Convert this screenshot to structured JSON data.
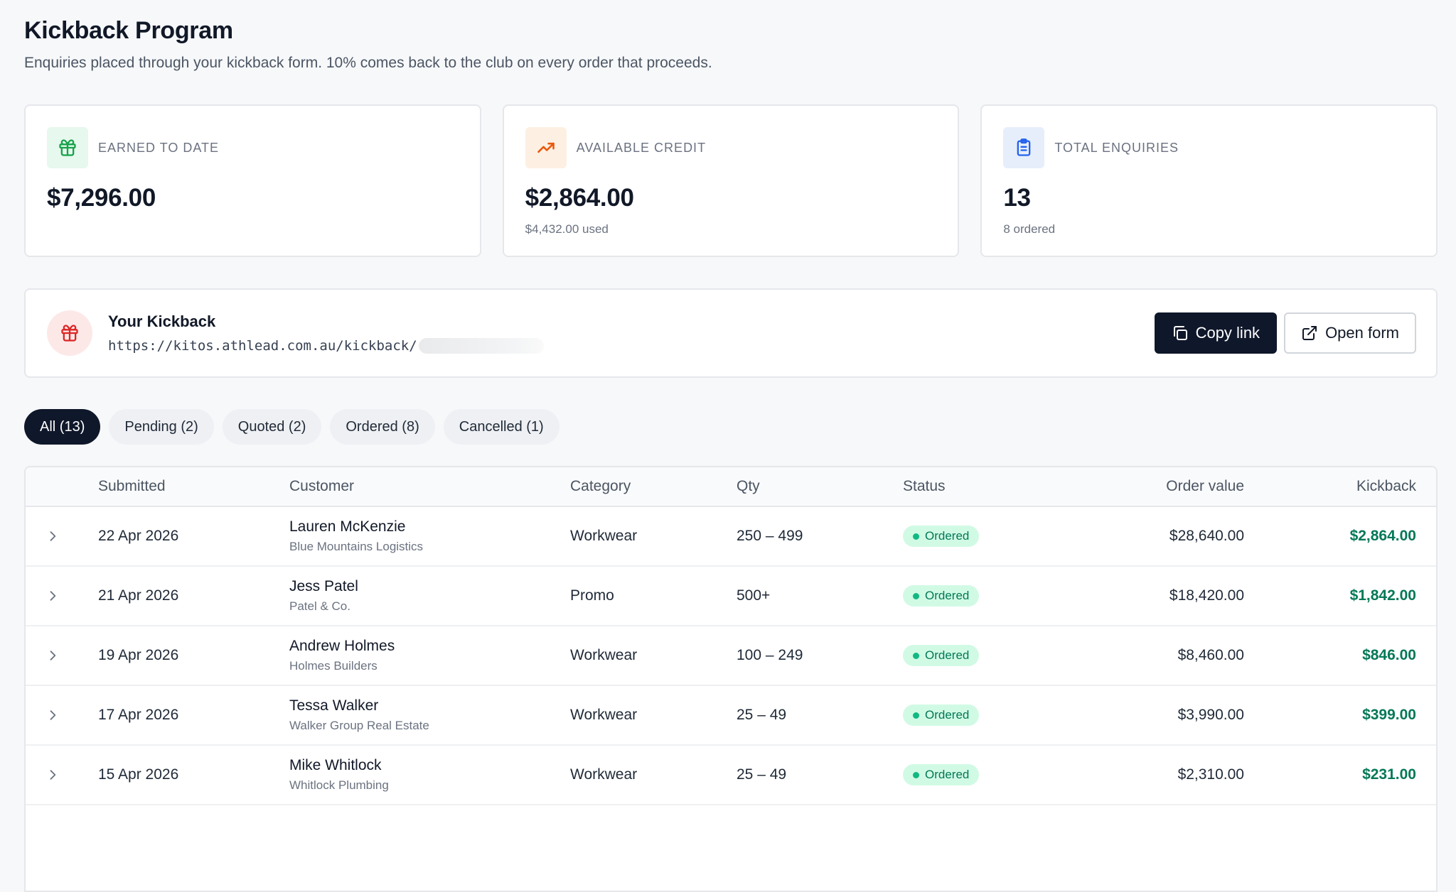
{
  "header": {
    "title": "Kickback Program",
    "subtitle": "Enquiries placed through your kickback form. 10% comes back to the club on every order that proceeds."
  },
  "stats": [
    {
      "label": "EARNED TO DATE",
      "value": "$7,296.00",
      "sub": "",
      "icon": "gift-icon",
      "accent": "#16a34a",
      "bg": "#e7f8ee"
    },
    {
      "label": "AVAILABLE CREDIT",
      "value": "$2,864.00",
      "sub": "$4,432.00 used",
      "icon": "trending-up-icon",
      "accent": "#ea580c",
      "bg": "#fdf0e2"
    },
    {
      "label": "TOTAL ENQUIRIES",
      "value": "13",
      "sub": "8 ordered",
      "icon": "clipboard-icon",
      "accent": "#2563eb",
      "bg": "#e6eefc"
    }
  ],
  "kickback": {
    "title": "Your Kickback",
    "url": "https://kitos.athlead.com.au/kickback/",
    "copy_label": "Copy link",
    "open_label": "Open form"
  },
  "filters": [
    {
      "label": "All (13)",
      "active": true
    },
    {
      "label": "Pending (2)",
      "active": false
    },
    {
      "label": "Quoted (2)",
      "active": false
    },
    {
      "label": "Ordered (8)",
      "active": false
    },
    {
      "label": "Cancelled (1)",
      "active": false
    }
  ],
  "table": {
    "columns": {
      "submitted": "Submitted",
      "customer": "Customer",
      "category": "Category",
      "qty": "Qty",
      "status": "Status",
      "order_value": "Order value",
      "kickback": "Kickback"
    },
    "rows": [
      {
        "submitted": "22 Apr 2026",
        "name": "Lauren McKenzie",
        "company": "Blue Mountains Logistics",
        "category": "Workwear",
        "qty": "250 – 499",
        "status": "Ordered",
        "order_value": "$28,640.00",
        "kickback": "$2,864.00"
      },
      {
        "submitted": "21 Apr 2026",
        "name": "Jess Patel",
        "company": "Patel & Co.",
        "category": "Promo",
        "qty": "500+",
        "status": "Ordered",
        "order_value": "$18,420.00",
        "kickback": "$1,842.00"
      },
      {
        "submitted": "19 Apr 2026",
        "name": "Andrew Holmes",
        "company": "Holmes Builders",
        "category": "Workwear",
        "qty": "100 – 249",
        "status": "Ordered",
        "order_value": "$8,460.00",
        "kickback": "$846.00"
      },
      {
        "submitted": "17 Apr 2026",
        "name": "Tessa Walker",
        "company": "Walker Group Real Estate",
        "category": "Workwear",
        "qty": "25 – 49",
        "status": "Ordered",
        "order_value": "$3,990.00",
        "kickback": "$399.00"
      },
      {
        "submitted": "15 Apr 2026",
        "name": "Mike Whitlock",
        "company": "Whitlock Plumbing",
        "category": "Workwear",
        "qty": "25 – 49",
        "status": "Ordered",
        "order_value": "$2,310.00",
        "kickback": "$231.00"
      }
    ]
  }
}
